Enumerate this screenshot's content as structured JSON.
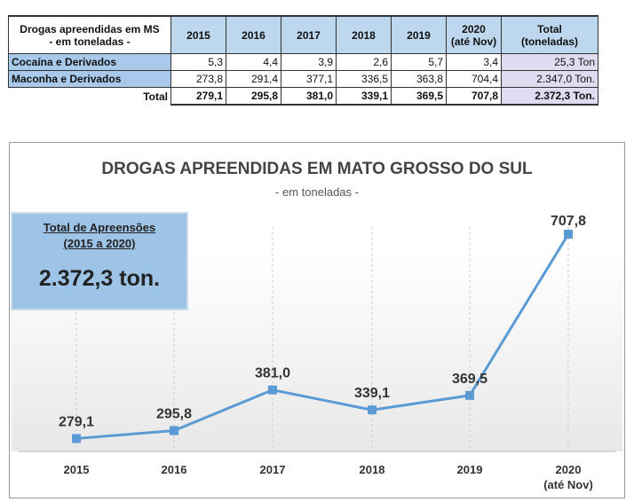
{
  "table": {
    "corner": [
      "Drogas apreendidas em MS",
      "- em toneladas -"
    ],
    "years": [
      [
        "2015"
      ],
      [
        "2016"
      ],
      [
        "2017"
      ],
      [
        "2018"
      ],
      [
        "2019"
      ],
      [
        "2020",
        "(até Nov)"
      ]
    ],
    "total_header": [
      "Total",
      "(toneladas)"
    ],
    "rows": [
      {
        "label": "Cocaína e Derivados",
        "values": [
          "5,3",
          "4,4",
          "3,9",
          "2,6",
          "5,7",
          "3,4"
        ],
        "total": "25,3 Ton"
      },
      {
        "label": "Maconha e Derivados",
        "values": [
          "273,8",
          "291,4",
          "377,1",
          "336,5",
          "363,8",
          "704,4"
        ],
        "total": "2.347,0 Ton."
      }
    ],
    "total_row": {
      "label": "Total",
      "values": [
        "279,1",
        "295,8",
        "381,0",
        "339,1",
        "369,5",
        "707,8"
      ],
      "total": "2.372,3 Ton."
    }
  },
  "summary": {
    "title": "Total de Apreensões",
    "period": "(2015 a 2020)",
    "value": "2.372,3 ton."
  },
  "chart_data": {
    "type": "line",
    "title": "DROGAS APREENDIDAS EM MATO GROSSO DO SUL",
    "subtitle": "- em toneladas -",
    "categories": [
      "2015",
      "2016",
      "2017",
      "2018",
      "2019",
      "2020"
    ],
    "category_sublabels": [
      "",
      "",
      "",
      "",
      "",
      "(até Nov)"
    ],
    "values": [
      279.1,
      295.8,
      381.0,
      339.1,
      369.5,
      707.8
    ],
    "data_labels": [
      "279,1",
      "295,8",
      "381,0",
      "339,1",
      "369,5",
      "707,8"
    ],
    "ylim": [
      252,
      760
    ],
    "color": "#5b9bd5",
    "grid": "vertical dashed"
  }
}
